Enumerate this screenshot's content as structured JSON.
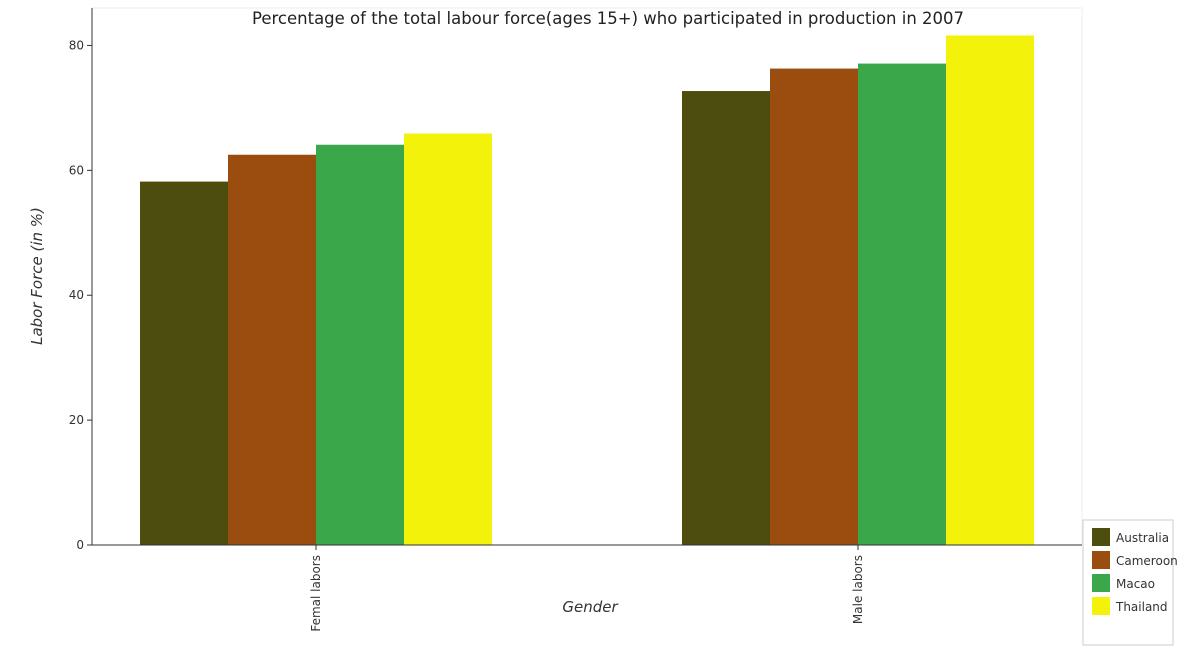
{
  "chart_data": {
    "type": "bar",
    "title": "Percentage of the total labour force(ages 15+) who participated in production in 2007",
    "xlabel": "Gender",
    "ylabel": "Labor Force (in %)",
    "categories": [
      "Femal labors",
      "Male labors"
    ],
    "ylim": [
      0,
      86
    ],
    "yticks": [
      0,
      20,
      40,
      60,
      80
    ],
    "grid": false,
    "legend_position": "bottom-right",
    "series": [
      {
        "name": "Australia",
        "color": "#4d4d0e",
        "values": [
          58.2,
          72.7
        ]
      },
      {
        "name": "Cameroon",
        "color": "#9b4d0f",
        "values": [
          62.5,
          76.3
        ]
      },
      {
        "name": "Macao",
        "color": "#3aa84a",
        "values": [
          64.1,
          77.1
        ]
      },
      {
        "name": "Thailand",
        "color": "#f2f20a",
        "values": [
          65.9,
          81.6
        ]
      }
    ]
  }
}
